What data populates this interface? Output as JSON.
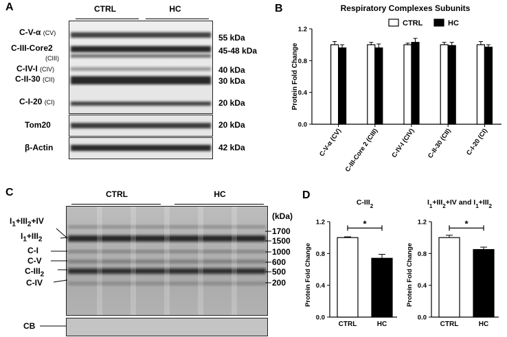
{
  "panels": {
    "A": "A",
    "B": "B",
    "C": "C",
    "D": "D"
  },
  "panel_a": {
    "groups": [
      "CTRL",
      "HC"
    ],
    "bands": [
      {
        "name": "C-V-α",
        "sub": "(CV)",
        "kda": "55 kDa"
      },
      {
        "name": "C-III-Core2",
        "sub": "(CIII)",
        "kda": "45-48 kDa"
      },
      {
        "name": "C-IV-I",
        "sub": "(CIV)",
        "kda": "40 kDa"
      },
      {
        "name": "C-II-30",
        "sub": "(CII)",
        "kda": "30 kDa"
      },
      {
        "name": "C-I-20",
        "sub": "(CI)",
        "kda": "20 kDa"
      }
    ],
    "tom20": {
      "name": "Tom20",
      "kda": "20 kDa"
    },
    "actin": {
      "name": "β-Actin",
      "kda": "42 kDa"
    }
  },
  "panel_c": {
    "groups": [
      "CTRL",
      "HC"
    ],
    "kda_title": "(kDa)",
    "markers": [
      "1700",
      "1500",
      "1000",
      "600",
      "500",
      "200"
    ],
    "complexes": [
      {
        "base": "I",
        "sub": "1",
        "rest": "+III",
        "sub2": "2",
        "tail": "+IV"
      },
      {
        "base": "I",
        "sub": "1",
        "rest": "+III",
        "sub2": "2",
        "tail": ""
      },
      {
        "base": "C-I",
        "sub": "",
        "rest": "",
        "sub2": "",
        "tail": ""
      },
      {
        "base": "C-V",
        "sub": "",
        "rest": "",
        "sub2": "",
        "tail": ""
      },
      {
        "base": "C-III",
        "sub": "2",
        "rest": "",
        "sub2": "",
        "tail": ""
      },
      {
        "base": "C-IV",
        "sub": "",
        "rest": "",
        "sub2": "",
        "tail": ""
      }
    ],
    "cb": "CB"
  },
  "colors": {
    "ctrl": "#ffffff",
    "hc": "#000000"
  },
  "chart_data": [
    {
      "type": "bar",
      "title": "Respiratory Complexes Subunits",
      "ylabel": "Protein Fold Change",
      "xlabel": "",
      "categories": [
        "C-V-α (CV)",
        "C-III-Core 2 (CIII)",
        "C-IV-I (CIV)",
        "C-II-30 (CII)",
        "C-I-20 (CI)"
      ],
      "series": [
        {
          "name": "CTRL",
          "values": [
            1.0,
            1.0,
            1.0,
            1.0,
            1.0
          ],
          "errors": [
            0.04,
            0.03,
            0.02,
            0.03,
            0.04
          ]
        },
        {
          "name": "HC",
          "values": [
            0.96,
            0.96,
            1.03,
            0.99,
            0.97
          ],
          "errors": [
            0.04,
            0.05,
            0.05,
            0.04,
            0.03
          ]
        }
      ],
      "ylim": [
        0,
        1.2
      ],
      "yticks": [
        "0.0",
        "0.4",
        "0.8",
        "1.2"
      ],
      "legend": "top-right"
    },
    {
      "type": "bar",
      "title": "C-III2",
      "ylabel": "Protein Fold Change",
      "xlabel": "",
      "categories": [
        "CTRL",
        "HC"
      ],
      "values": [
        1.0,
        0.74
      ],
      "errors": [
        0.01,
        0.05
      ],
      "ylim": [
        0,
        1.2
      ],
      "yticks": [
        "0.0",
        "0.4",
        "0.8",
        "1.2"
      ],
      "significance": "*"
    },
    {
      "type": "bar",
      "title": "I1+III2+IV and I1+III2",
      "ylabel": "Protein Fold Change",
      "xlabel": "",
      "categories": [
        "CTRL",
        "HC"
      ],
      "values": [
        1.0,
        0.85
      ],
      "errors": [
        0.03,
        0.03
      ],
      "ylim": [
        0,
        1.2
      ],
      "yticks": [
        "0.0",
        "0.4",
        "0.8",
        "1.2"
      ],
      "significance": "*"
    }
  ]
}
